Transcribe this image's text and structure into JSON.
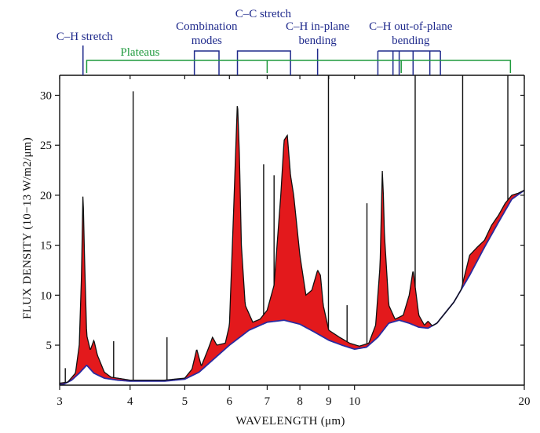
{
  "colors": {
    "feature_fill": "#e3191c",
    "spectrum_line": "#111111",
    "continuum_line": "#2a2aa0",
    "annotation": "#1f2a8c",
    "plateau": "#1e9a3c",
    "axis": "#111111"
  },
  "chart_data": {
    "type": "line",
    "x_scale": "log",
    "xlabel": "WAVELENGTH (μm)",
    "ylabel": "FLUX DENSITY (10−13 W/m2/μm)",
    "xlim": [
      3,
      20
    ],
    "ylim": [
      1,
      32
    ],
    "x_ticks": [
      3,
      4,
      5,
      6,
      7,
      8,
      9,
      10,
      20
    ],
    "x_tick_labels": [
      "3",
      "4",
      "5",
      "6",
      "7",
      "8",
      "9",
      "10",
      "20"
    ],
    "y_ticks": [
      5,
      10,
      15,
      20,
      25,
      30
    ],
    "y_tick_labels": [
      "5",
      "10",
      "15",
      "20",
      "25",
      "30"
    ],
    "grid": false,
    "series": [
      {
        "role": "continuum",
        "x": [
          3.05,
          3.15,
          3.25,
          3.35,
          3.45,
          3.6,
          3.8,
          4.0,
          4.3,
          4.6,
          5.0,
          5.3,
          5.6,
          6.0,
          6.5,
          7.0,
          7.5,
          8.0,
          8.5,
          9.0,
          9.5,
          10.0,
          10.5,
          11.0,
          11.5,
          12.0,
          12.5,
          13.0,
          13.5,
          14.0,
          15.0,
          16.0,
          17.0,
          18.0,
          19.0,
          20.0
        ],
        "y": [
          1.1,
          1.5,
          2.2,
          3.0,
          2.2,
          1.7,
          1.5,
          1.4,
          1.4,
          1.4,
          1.6,
          2.3,
          3.5,
          5.0,
          6.5,
          7.3,
          7.5,
          7.1,
          6.3,
          5.5,
          5.0,
          4.6,
          4.8,
          5.8,
          7.2,
          7.5,
          7.2,
          6.8,
          6.7,
          7.2,
          9.3,
          12.0,
          14.8,
          17.3,
          19.6,
          20.5
        ]
      },
      {
        "role": "spectrum",
        "x": [
          3.0,
          3.1,
          3.2,
          3.25,
          3.28,
          3.3,
          3.32,
          3.35,
          3.4,
          3.45,
          3.5,
          3.6,
          3.7,
          3.8,
          4.0,
          4.3,
          4.6,
          5.0,
          5.15,
          5.25,
          5.35,
          5.5,
          5.6,
          5.7,
          5.9,
          6.0,
          6.1,
          6.2,
          6.25,
          6.3,
          6.4,
          6.6,
          6.8,
          7.0,
          7.2,
          7.4,
          7.5,
          7.6,
          7.7,
          7.8,
          8.0,
          8.2,
          8.4,
          8.6,
          8.7,
          8.8,
          9.0,
          9.4,
          9.8,
          10.2,
          10.6,
          10.9,
          11.1,
          11.2,
          11.25,
          11.3,
          11.5,
          11.8,
          12.2,
          12.5,
          12.7,
          12.8,
          13.0,
          13.3,
          13.5,
          13.7,
          13.9,
          14.2,
          14.8,
          15.4,
          16.0,
          16.5,
          17.0,
          17.5,
          18.0,
          18.5,
          19.0,
          19.5,
          20.0
        ],
        "y": [
          1.2,
          1.3,
          2.2,
          5.0,
          12.0,
          20.5,
          14.0,
          6.0,
          4.5,
          5.5,
          4.0,
          2.3,
          1.8,
          1.7,
          1.5,
          1.5,
          1.5,
          1.7,
          2.6,
          4.6,
          2.9,
          4.6,
          5.8,
          5.0,
          5.2,
          7.0,
          18.0,
          29.5,
          24.0,
          15.0,
          9.0,
          7.3,
          7.6,
          8.5,
          11.0,
          20.0,
          25.5,
          26.0,
          22.0,
          20.0,
          14.0,
          10.0,
          10.5,
          12.5,
          12.0,
          9.0,
          6.5,
          5.8,
          5.2,
          4.9,
          5.2,
          7.0,
          13.0,
          22.5,
          20.0,
          16.0,
          9.0,
          7.6,
          8.0,
          10.0,
          12.5,
          11.0,
          8.0,
          7.0,
          7.4,
          7.0,
          6.6,
          6.9,
          8.2,
          10.2,
          14.0,
          14.8,
          15.5,
          17.0,
          18.0,
          19.2,
          20.0,
          20.2,
          20.5
        ]
      }
    ],
    "emission_lines": [
      {
        "x": 3.07,
        "y": 2.7
      },
      {
        "x": 3.74,
        "y": 5.4
      },
      {
        "x": 4.05,
        "y": 30.4
      },
      {
        "x": 4.65,
        "y": 5.8
      },
      {
        "x": 6.9,
        "y": 23.1
      },
      {
        "x": 7.2,
        "y": 22.0
      },
      {
        "x": 8.99,
        "y": 32.0
      },
      {
        "x": 9.7,
        "y": 9.0
      },
      {
        "x": 10.52,
        "y": 19.2
      },
      {
        "x": 12.81,
        "y": 32.0
      },
      {
        "x": 15.55,
        "y": 32.0
      },
      {
        "x": 18.7,
        "y": 32.0
      }
    ],
    "annotations": {
      "bands": [
        {
          "label": "C–H stretch",
          "x": [
            3.3
          ]
        },
        {
          "label": "Combination modes",
          "x": [
            5.2,
            5.75
          ]
        },
        {
          "label": "C–C stretch",
          "x": [
            6.2,
            7.7
          ]
        },
        {
          "label": "C–H in-plane bending",
          "x": [
            8.6
          ]
        },
        {
          "label": "C–H out-of-plane bending",
          "x": [
            11.0,
            11.7,
            12.0,
            12.7,
            13.6,
            14.2
          ]
        }
      ],
      "plateaus": {
        "label": "Plateaus",
        "x_start": 3.35,
        "x_end": 18.9,
        "drops": [
          7.0,
          12.1
        ]
      }
    }
  }
}
